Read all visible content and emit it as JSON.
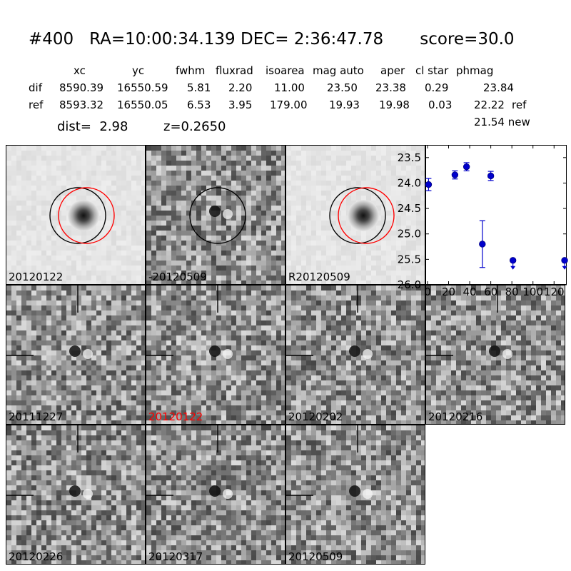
{
  "header": {
    "title": "#400   RA=10:00:34.139 DEC= 2:36:47.78       score=30.0"
  },
  "table": {
    "columns": [
      "xc",
      "yc",
      "fwhm",
      "fluxrad",
      "isoarea",
      "mag auto",
      "aper",
      "cl star",
      "phmag"
    ],
    "rows": [
      {
        "label": "dif",
        "values": [
          "8590.39",
          "16550.59",
          "5.81",
          "2.20",
          "11.00",
          "23.50",
          "23.38",
          "0.29",
          "23.84"
        ],
        "suffix": ""
      },
      {
        "label": "ref",
        "values": [
          "8593.32",
          "16550.05",
          "6.53",
          "3.95",
          "179.00",
          "19.93",
          "19.98",
          "0.03",
          "22.22"
        ],
        "suffix": "ref"
      }
    ],
    "new_line": "21.54 new"
  },
  "meta": {
    "dist_text": "dist=  2.98",
    "z_text": "z=0.2650"
  },
  "stamps": [
    {
      "label": "20120122",
      "style": "smooth",
      "circles": true,
      "label_color": "#000000"
    },
    {
      "label": "-20120509",
      "style": "noisy",
      "circles": true,
      "label_color": "#000000"
    },
    {
      "label": "R20120509",
      "style": "smooth",
      "circles": true,
      "label_color": "#000000"
    },
    {
      "label": "20111227",
      "style": "noisy",
      "crosshair": true,
      "label_color": "#000000"
    },
    {
      "label": "20120122",
      "style": "noisy",
      "crosshair": true,
      "label_color": "#ff0000"
    },
    {
      "label": "20120202",
      "style": "noisy",
      "crosshair": true,
      "label_color": "#000000"
    },
    {
      "label": "20120216",
      "style": "noisy",
      "crosshair": true,
      "label_color": "#000000"
    },
    {
      "label": "20120226",
      "style": "noisy",
      "crosshair": true,
      "label_color": "#000000"
    },
    {
      "label": "20120317",
      "style": "noisy",
      "crosshair": true,
      "label_color": "#000000"
    },
    {
      "label": "20120509",
      "style": "noisy",
      "crosshair": true,
      "label_color": "#000000"
    }
  ],
  "colors": {
    "circle_black": "#000000",
    "circle_red": "#ff0000",
    "point_fill": "#0000cc",
    "point_edge": "#000080",
    "highlight_label": "#ff0000"
  },
  "chart_data": {
    "type": "scatter",
    "title": "",
    "xlabel": "",
    "ylabel": "",
    "xlim": [
      -2,
      132
    ],
    "ylim": [
      26.0,
      23.25
    ],
    "y_inverted": true,
    "x_ticks": [
      "0",
      "20",
      "40",
      "60",
      "80",
      "100",
      "120"
    ],
    "y_ticks": [
      "23.5",
      "24.0",
      "24.5",
      "25.0",
      "25.5",
      "26.0"
    ],
    "points": [
      {
        "x": 1,
        "y": 24.03,
        "err": 0.12
      },
      {
        "x": 26,
        "y": 23.84,
        "err": 0.08
      },
      {
        "x": 37,
        "y": 23.68,
        "err": 0.08
      },
      {
        "x": 52,
        "y": 25.2,
        "err": 0.46
      },
      {
        "x": 60,
        "y": 23.86,
        "err": 0.09
      }
    ],
    "upper_limits": [
      {
        "x": 81,
        "y": 25.52
      },
      {
        "x": 130,
        "y": 25.52
      }
    ]
  }
}
